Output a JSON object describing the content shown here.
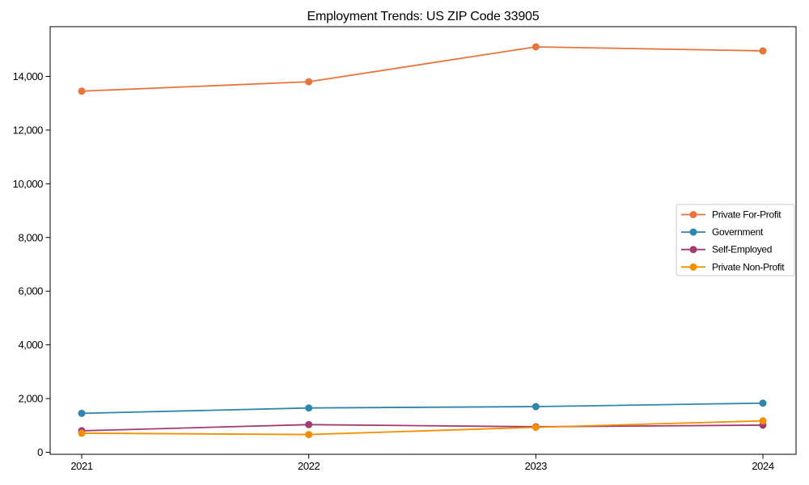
{
  "figure": {
    "title": "Employment Trends: US ZIP Code 33905"
  },
  "chart_data": {
    "type": "line",
    "title": "Employment Trends: US ZIP Code 33905",
    "xlabel": "",
    "ylabel": "",
    "x_categories": [
      "2021",
      "2022",
      "2023",
      "2024"
    ],
    "series": [
      {
        "name": "Private For-Profit",
        "color": "#E8743B",
        "values": [
          13450,
          13800,
          15100,
          14950
        ]
      },
      {
        "name": "Government",
        "color": "#2E86AB",
        "values": [
          1450,
          1650,
          1700,
          1830
        ]
      },
      {
        "name": "Self-Employed",
        "color": "#A23B72",
        "values": [
          800,
          1030,
          950,
          1010
        ]
      },
      {
        "name": "Private Non-Profit",
        "color": "#F18F01",
        "values": [
          710,
          660,
          930,
          1170
        ]
      }
    ],
    "yticks": [
      0,
      2000,
      4000,
      6000,
      8000,
      10000,
      12000,
      14000
    ],
    "ylim": [
      0,
      15880
    ],
    "grid": false,
    "legend_position": "middle-right",
    "marker": "circle",
    "line_width": 1.8,
    "axis_color": "#000000",
    "background_color": "#ffffff"
  }
}
